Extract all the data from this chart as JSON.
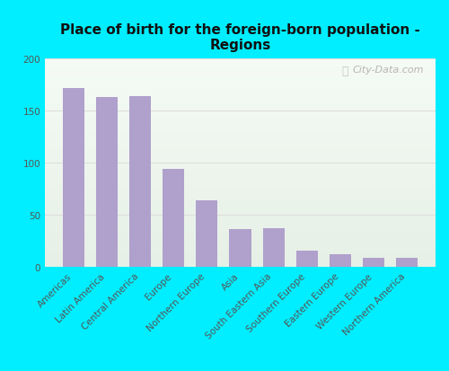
{
  "title": "Place of birth for the foreign-born population -\nRegions",
  "categories": [
    "Americas",
    "Latin America",
    "Central America",
    "Europe",
    "Northern Europe",
    "Asia",
    "South Eastern Asia",
    "Southern Europe",
    "Eastern Europe",
    "Western Europe",
    "Northern America"
  ],
  "values": [
    172,
    163,
    164,
    94,
    64,
    36,
    37,
    16,
    12,
    9,
    9
  ],
  "bar_color": "#b0a0cc",
  "background_outer": "#00eeff",
  "ylim": [
    0,
    200
  ],
  "yticks": [
    0,
    50,
    100,
    150,
    200
  ],
  "title_fontsize": 11,
  "tick_fontsize": 7.5,
  "watermark": "City-Data.com",
  "grid_color": "#dddddd"
}
